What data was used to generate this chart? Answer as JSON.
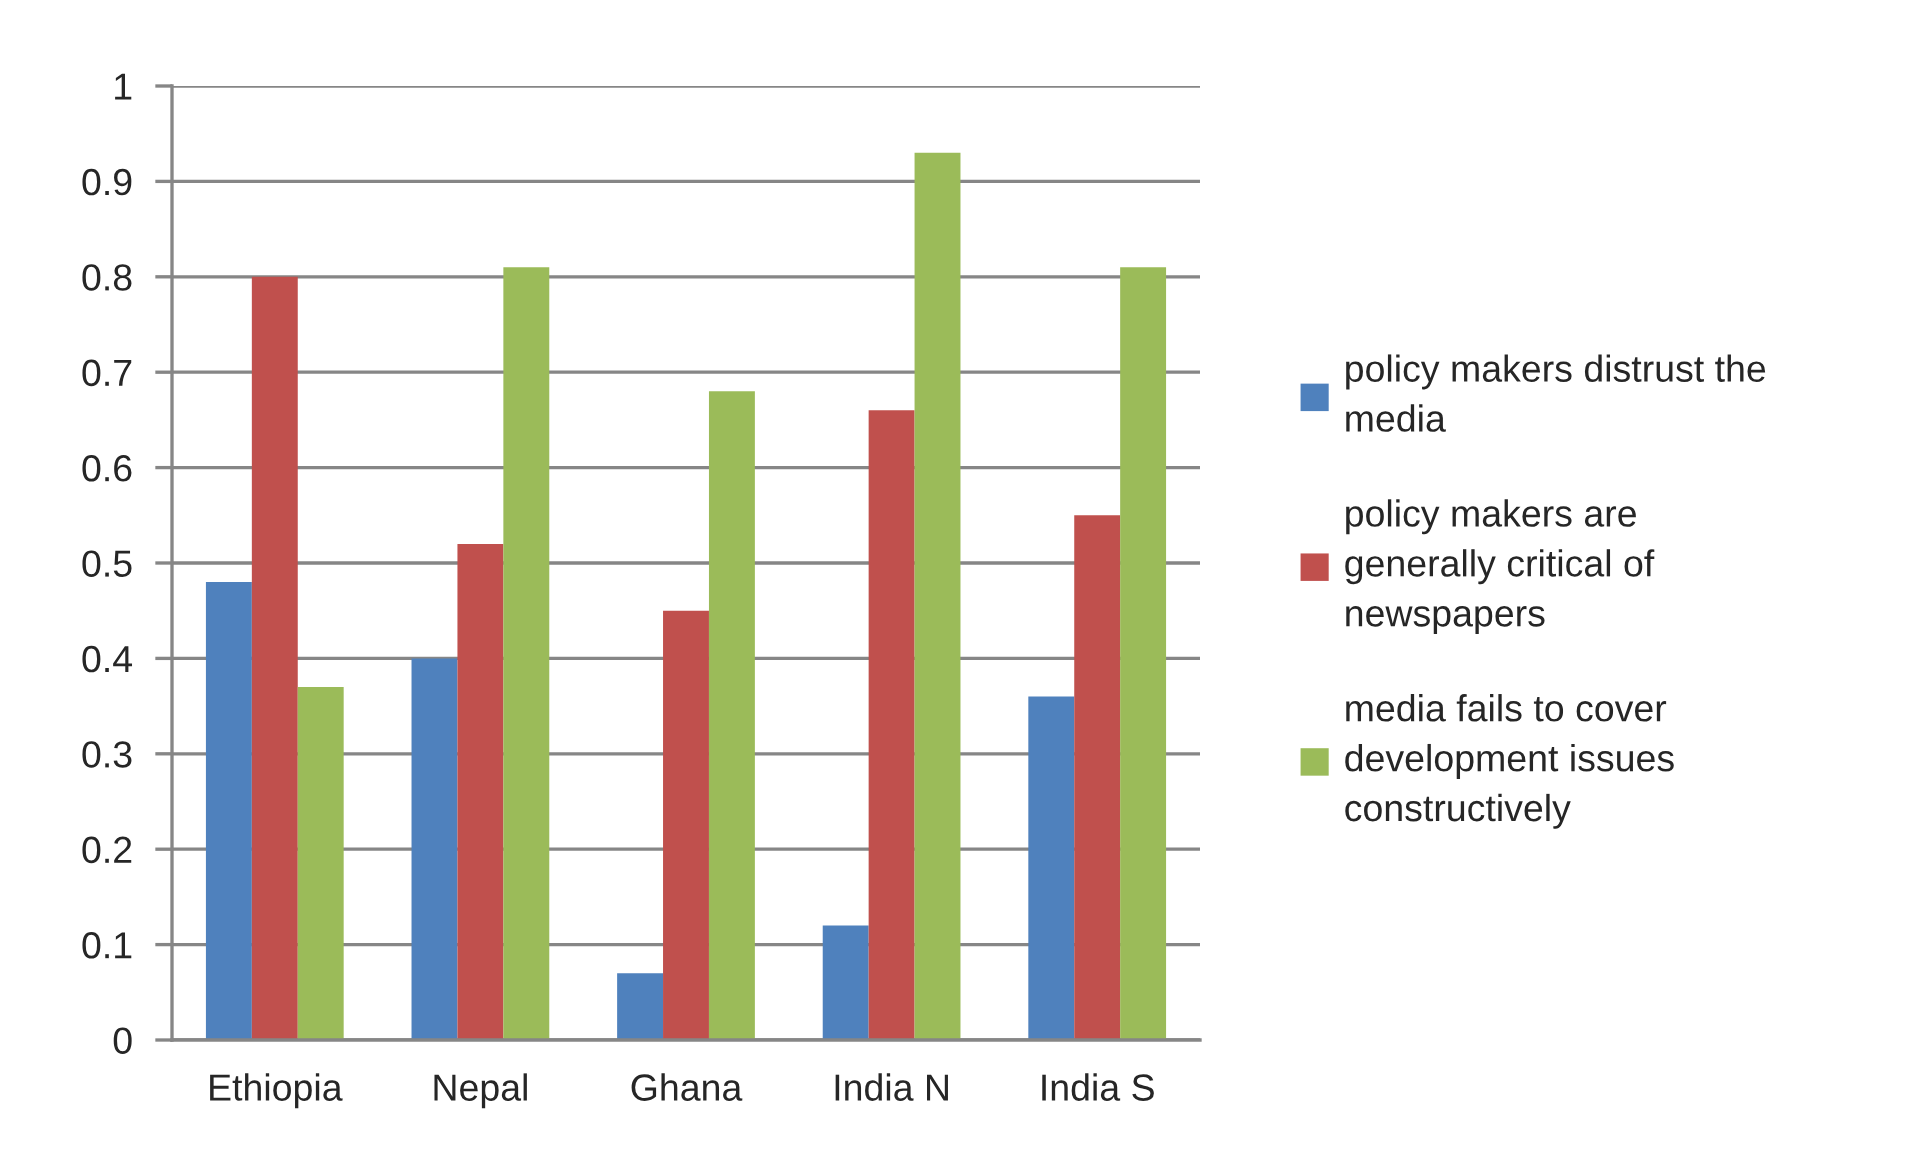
{
  "chart_data": {
    "type": "bar",
    "categories": [
      "Ethiopia",
      "Nepal",
      "Ghana",
      "India N",
      "India S"
    ],
    "series": [
      {
        "name": "policy makers distrust the media",
        "color": "#4f81bd",
        "values": [
          0.48,
          0.4,
          0.07,
          0.12,
          0.36
        ]
      },
      {
        "name": "policy makers are generally critical of newspapers",
        "color": "#c0504d",
        "values": [
          0.8,
          0.52,
          0.45,
          0.66,
          0.55
        ]
      },
      {
        "name": "media fails to cover development issues constructively",
        "color": "#9bbb59",
        "values": [
          0.37,
          0.81,
          0.68,
          0.93,
          0.81
        ]
      }
    ],
    "ylim": [
      0,
      1
    ],
    "yticks": [
      0,
      0.1,
      0.2,
      0.3,
      0.4,
      0.5,
      0.6,
      0.7,
      0.8,
      0.9,
      1
    ],
    "grid": "y",
    "legend": "right"
  }
}
